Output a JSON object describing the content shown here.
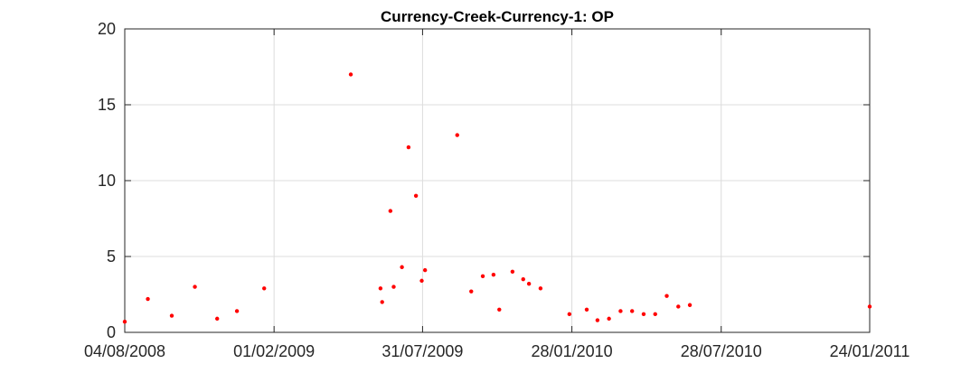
{
  "chart_data": {
    "type": "scatter",
    "title": "Currency-Creek-Currency-1: OP",
    "xlabel": "",
    "ylabel": "",
    "xlim_days": [
      0,
      903
    ],
    "ylim": [
      0,
      20
    ],
    "yticks": [
      0,
      5,
      10,
      15,
      20
    ],
    "xticks": [
      {
        "day": 0,
        "label": "04/08/2008"
      },
      {
        "day": 181,
        "label": "01/02/2009"
      },
      {
        "day": 361,
        "label": "31/07/2009"
      },
      {
        "day": 542,
        "label": "28/01/2010"
      },
      {
        "day": 723,
        "label": "28/07/2010"
      },
      {
        "day": 903,
        "label": "24/01/2011"
      }
    ],
    "grid": true,
    "marker_color": "#ff0000",
    "points": [
      {
        "day": 0,
        "value": 0.7
      },
      {
        "day": 28,
        "value": 2.2
      },
      {
        "day": 57,
        "value": 1.1
      },
      {
        "day": 85,
        "value": 3.0
      },
      {
        "day": 112,
        "value": 0.9
      },
      {
        "day": 136,
        "value": 1.4
      },
      {
        "day": 169,
        "value": 2.9
      },
      {
        "day": 274,
        "value": 17.0
      },
      {
        "day": 310,
        "value": 2.9
      },
      {
        "day": 312,
        "value": 2.0
      },
      {
        "day": 322,
        "value": 8.0
      },
      {
        "day": 326,
        "value": 3.0
      },
      {
        "day": 336,
        "value": 4.3
      },
      {
        "day": 344,
        "value": 12.2
      },
      {
        "day": 353,
        "value": 9.0
      },
      {
        "day": 360,
        "value": 3.4
      },
      {
        "day": 364,
        "value": 4.1
      },
      {
        "day": 403,
        "value": 13.0
      },
      {
        "day": 420,
        "value": 2.7
      },
      {
        "day": 434,
        "value": 3.7
      },
      {
        "day": 447,
        "value": 3.8
      },
      {
        "day": 454,
        "value": 1.5
      },
      {
        "day": 470,
        "value": 4.0
      },
      {
        "day": 483,
        "value": 3.5
      },
      {
        "day": 490,
        "value": 3.2
      },
      {
        "day": 504,
        "value": 2.9
      },
      {
        "day": 539,
        "value": 1.2
      },
      {
        "day": 560,
        "value": 1.5
      },
      {
        "day": 573,
        "value": 0.8
      },
      {
        "day": 587,
        "value": 0.9
      },
      {
        "day": 601,
        "value": 1.4
      },
      {
        "day": 615,
        "value": 1.4
      },
      {
        "day": 629,
        "value": 1.2
      },
      {
        "day": 643,
        "value": 1.2
      },
      {
        "day": 657,
        "value": 2.4
      },
      {
        "day": 671,
        "value": 1.7
      },
      {
        "day": 685,
        "value": 1.8
      },
      {
        "day": 903,
        "value": 1.7
      }
    ]
  }
}
